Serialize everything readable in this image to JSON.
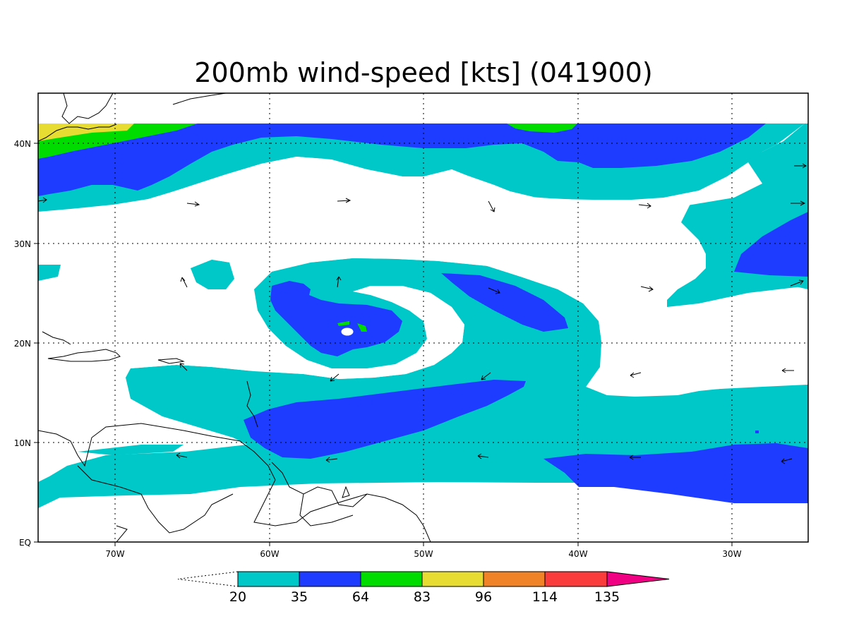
{
  "title": "200mb wind-speed [kts] (041900)",
  "lon_labels": [
    "70W",
    "60W",
    "50W",
    "40W",
    "30W"
  ],
  "lat_labels": [
    "40N",
    "30N",
    "20N",
    "10N",
    "EQ"
  ],
  "colorbar": {
    "labels": [
      "20",
      "35",
      "64",
      "83",
      "96",
      "114",
      "135"
    ],
    "colors": [
      "#00c8c8",
      "#1e3cff",
      "#00dc00",
      "#e6dc32",
      "#f08228",
      "#fa3c3c",
      "#f00082"
    ]
  },
  "field_colors": {
    "level_20": "#00c8c8",
    "level_35": "#1e3cff",
    "level_64": "#00dc00",
    "level_83": "#e6dc32"
  }
}
